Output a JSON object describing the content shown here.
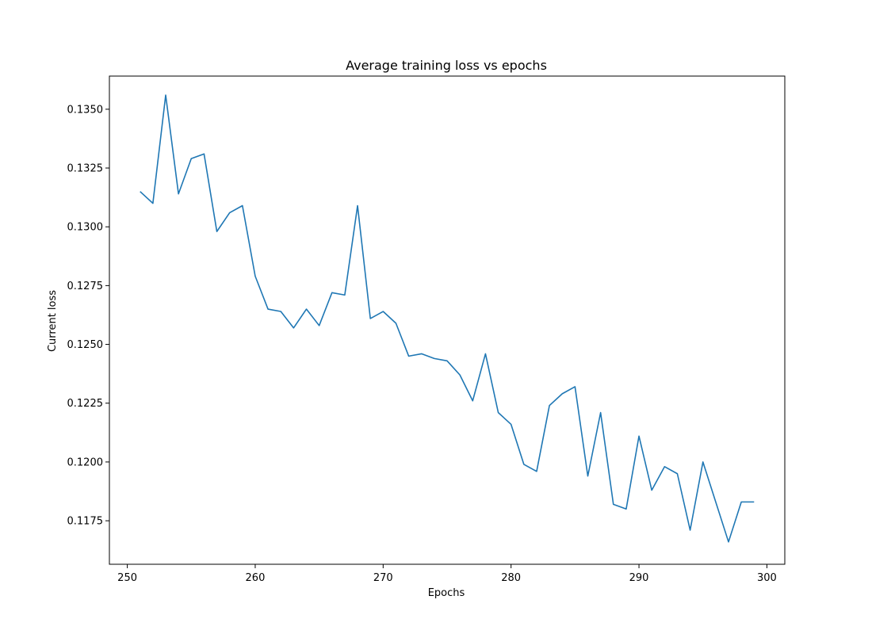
{
  "chart_data": {
    "type": "line",
    "title": "Average training loss vs epochs",
    "xlabel": "Epochs",
    "ylabel": "Current loss",
    "xlim": [
      248.6,
      301.4
    ],
    "ylim": [
      0.11565,
      0.13641
    ],
    "xticks": [
      250,
      260,
      270,
      280,
      290,
      300
    ],
    "xtick_labels": [
      "250",
      "260",
      "270",
      "280",
      "290",
      "300"
    ],
    "yticks": [
      0.1175,
      0.12,
      0.1225,
      0.125,
      0.1275,
      0.13,
      0.1325,
      0.135
    ],
    "ytick_labels": [
      "0.1175",
      "0.1200",
      "0.1225",
      "0.1250",
      "0.1275",
      "0.1300",
      "0.1325",
      "0.1350"
    ],
    "grid": false,
    "series": [
      {
        "color": "#1f77b4",
        "x": [
          251,
          252,
          253,
          254,
          255,
          256,
          257,
          258,
          259,
          260,
          261,
          262,
          263,
          264,
          265,
          266,
          267,
          268,
          269,
          270,
          271,
          272,
          273,
          274,
          275,
          276,
          277,
          278,
          279,
          280,
          281,
          282,
          283,
          284,
          285,
          286,
          287,
          288,
          289,
          290,
          291,
          292,
          293,
          294,
          295,
          296,
          297,
          298,
          299
        ],
        "y": [
          0.1315,
          0.131,
          0.1356,
          0.1314,
          0.1329,
          0.1331,
          0.1298,
          0.1306,
          0.1309,
          0.1279,
          0.1265,
          0.1264,
          0.1257,
          0.1265,
          0.1258,
          0.1272,
          0.1271,
          0.1309,
          0.1261,
          0.1264,
          0.1259,
          0.1245,
          0.1246,
          0.1244,
          0.1243,
          0.1237,
          0.1226,
          0.1246,
          0.1221,
          0.1216,
          0.1199,
          0.1196,
          0.1224,
          0.1229,
          0.1232,
          0.1194,
          0.1221,
          0.1182,
          0.118,
          0.1211,
          0.1188,
          0.1198,
          0.1195,
          0.1171,
          0.12,
          0.1183,
          0.1166,
          0.1183,
          0.1183
        ]
      }
    ]
  }
}
